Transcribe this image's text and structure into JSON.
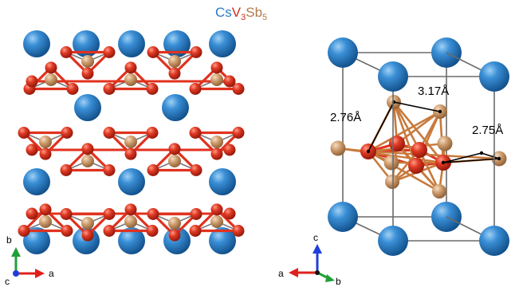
{
  "title": {
    "cs": "Cs",
    "v": "V",
    "v_sub": "3",
    "sb": "Sb",
    "sb_sub": "5"
  },
  "colors": {
    "cs": "#1f6fb5",
    "v": "#d42a1c",
    "sb": "#c89466",
    "bond_v": "#e0321f",
    "bond_sb": "#7a7a7a",
    "cell": "#6b6b6b",
    "axis_a": "#e0201c",
    "axis_b": "#21a038",
    "axis_c": "#1f3fd9"
  },
  "distances": [
    {
      "label": "2.76Å"
    },
    {
      "label": "3.17Å"
    },
    {
      "label": "2.75Å"
    }
  ],
  "left_axes": {
    "a": "a",
    "b": "b",
    "c": "c"
  },
  "right_axes": {
    "a": "a",
    "b": "b",
    "c": "c"
  }
}
